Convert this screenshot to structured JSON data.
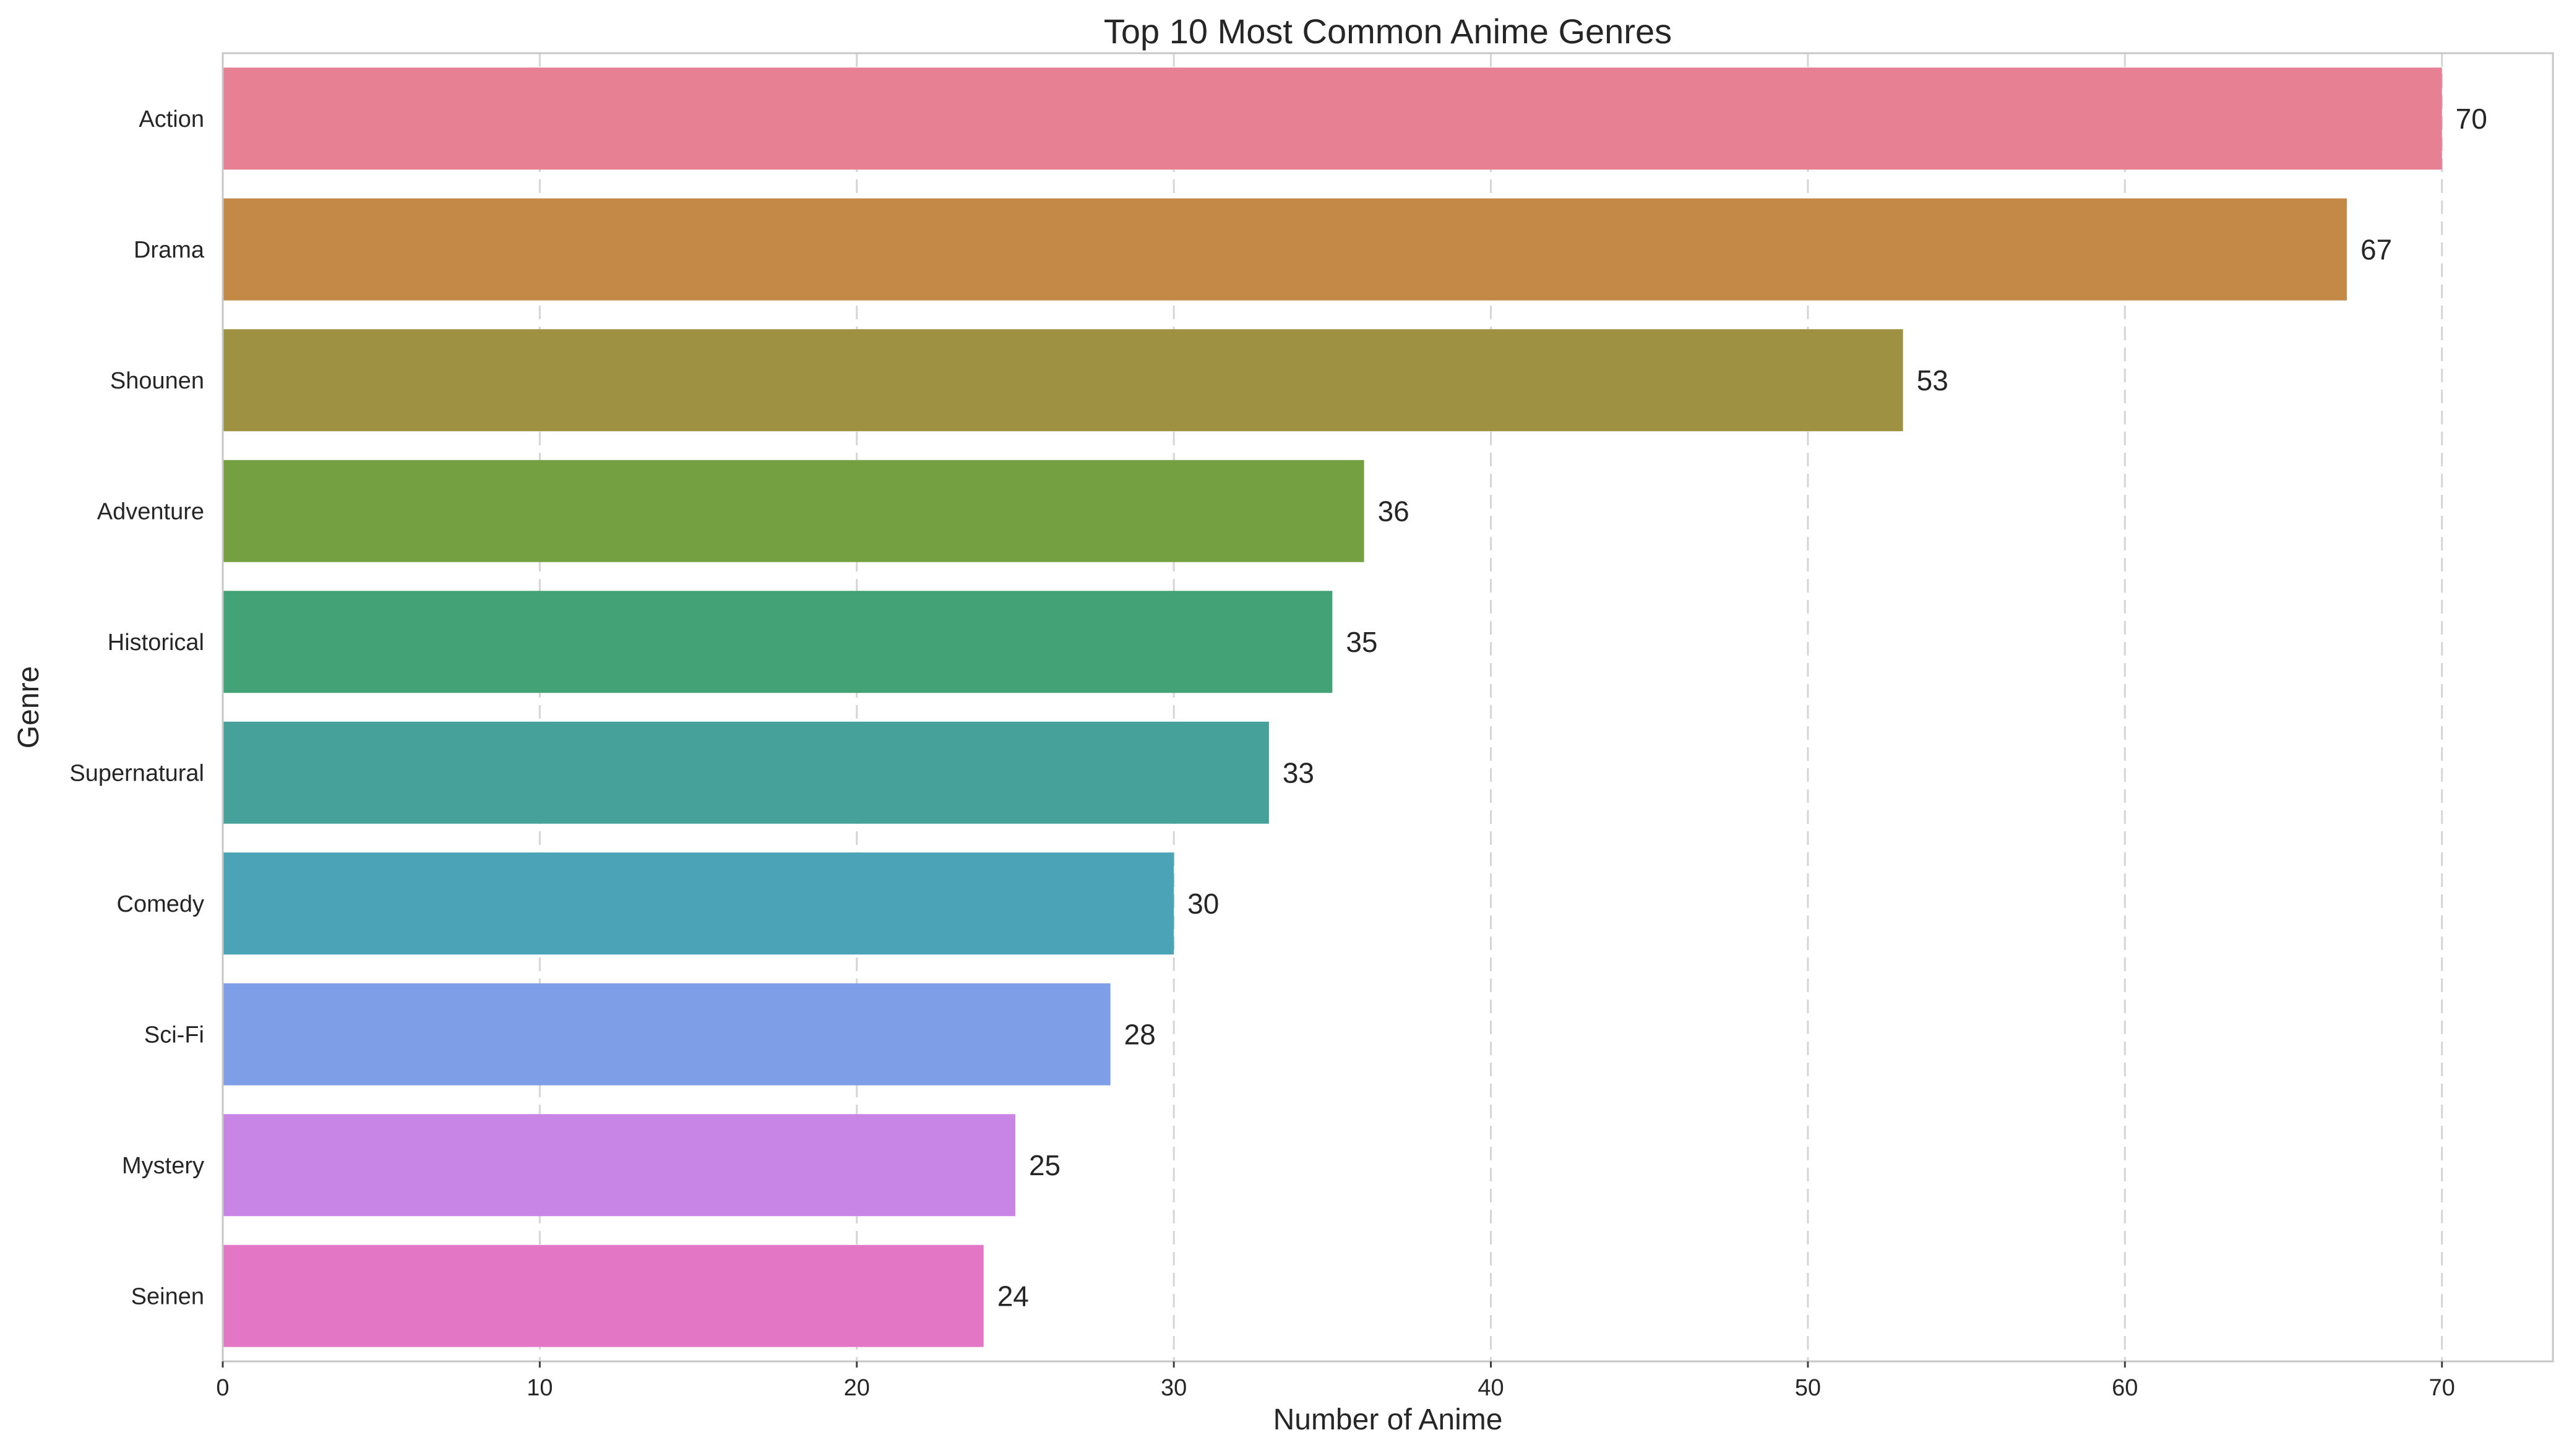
{
  "chart_data": {
    "type": "bar",
    "orientation": "horizontal",
    "title": "Top 10 Most Common Anime Genres",
    "xlabel": "Number of Anime",
    "ylabel": "Genre",
    "categories": [
      "Action",
      "Drama",
      "Shounen",
      "Adventure",
      "Historical",
      "Supernatural",
      "Comedy",
      "Sci-Fi",
      "Mystery",
      "Seinen"
    ],
    "values": [
      70,
      67,
      53,
      36,
      35,
      33,
      30,
      28,
      25,
      24
    ],
    "value_labels": [
      "70",
      "67",
      "53",
      "36",
      "35",
      "33",
      "30",
      "28",
      "25",
      "24"
    ],
    "colors": [
      "#e88093",
      "#c48847",
      "#9f9142",
      "#75a041",
      "#43a376",
      "#46a19b",
      "#4aa3b7",
      "#7e9ee8",
      "#c985e6",
      "#e377c6"
    ],
    "xlim": [
      0,
      73.5
    ],
    "xticks": [
      0,
      10,
      20,
      30,
      40,
      50,
      60,
      70
    ],
    "xtick_labels": [
      "0",
      "10",
      "20",
      "30",
      "40",
      "50",
      "60",
      "70"
    ],
    "grid": "vertical dashed",
    "legend": "none"
  }
}
